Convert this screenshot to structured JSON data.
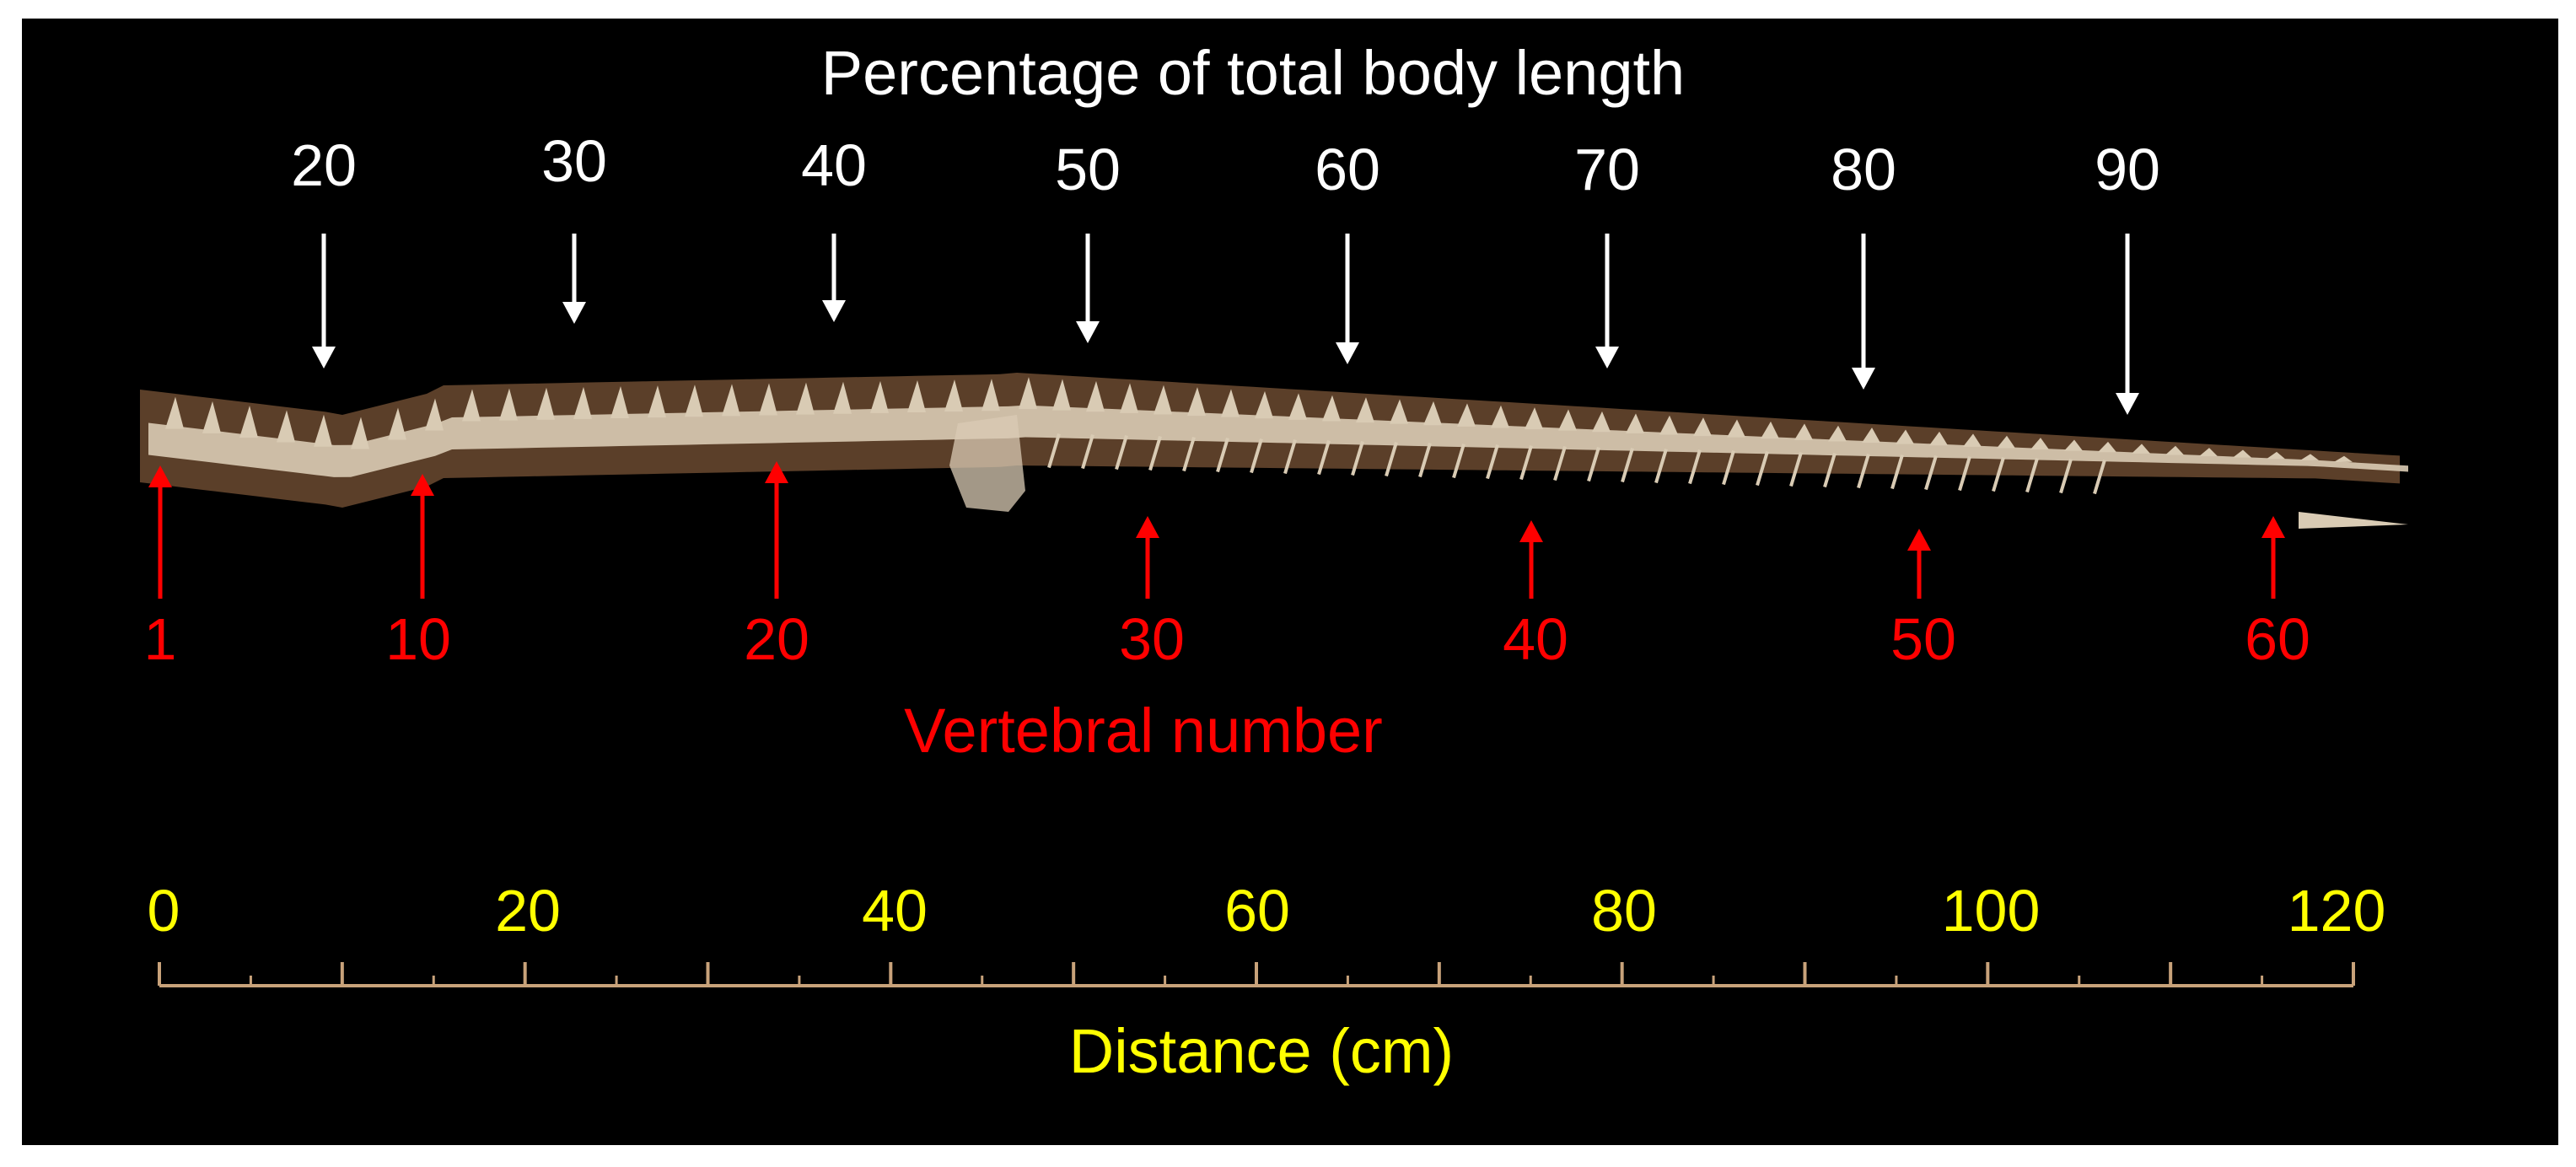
{
  "figure": {
    "top_title": "Percentage of total body length",
    "percent_labels": [
      "20",
      "30",
      "40",
      "50",
      "60",
      "70",
      "80",
      "90"
    ],
    "vertebra_labels": [
      "1",
      "10",
      "20",
      "30",
      "40",
      "50",
      "60"
    ],
    "vertebra_title": "Vertebral number",
    "scale_labels": [
      "0",
      "20",
      "40",
      "60",
      "80",
      "100",
      "120"
    ],
    "scale_title": "Distance (cm)",
    "colors": {
      "background": "#000000",
      "percent_text": "#ffffff",
      "vertebra_text": "#ff0000",
      "scale_text": "#ffff00",
      "scale_line": "#c8a27a",
      "bone": "#d9cbb4",
      "bone_shadow": "#6b4a30"
    }
  }
}
